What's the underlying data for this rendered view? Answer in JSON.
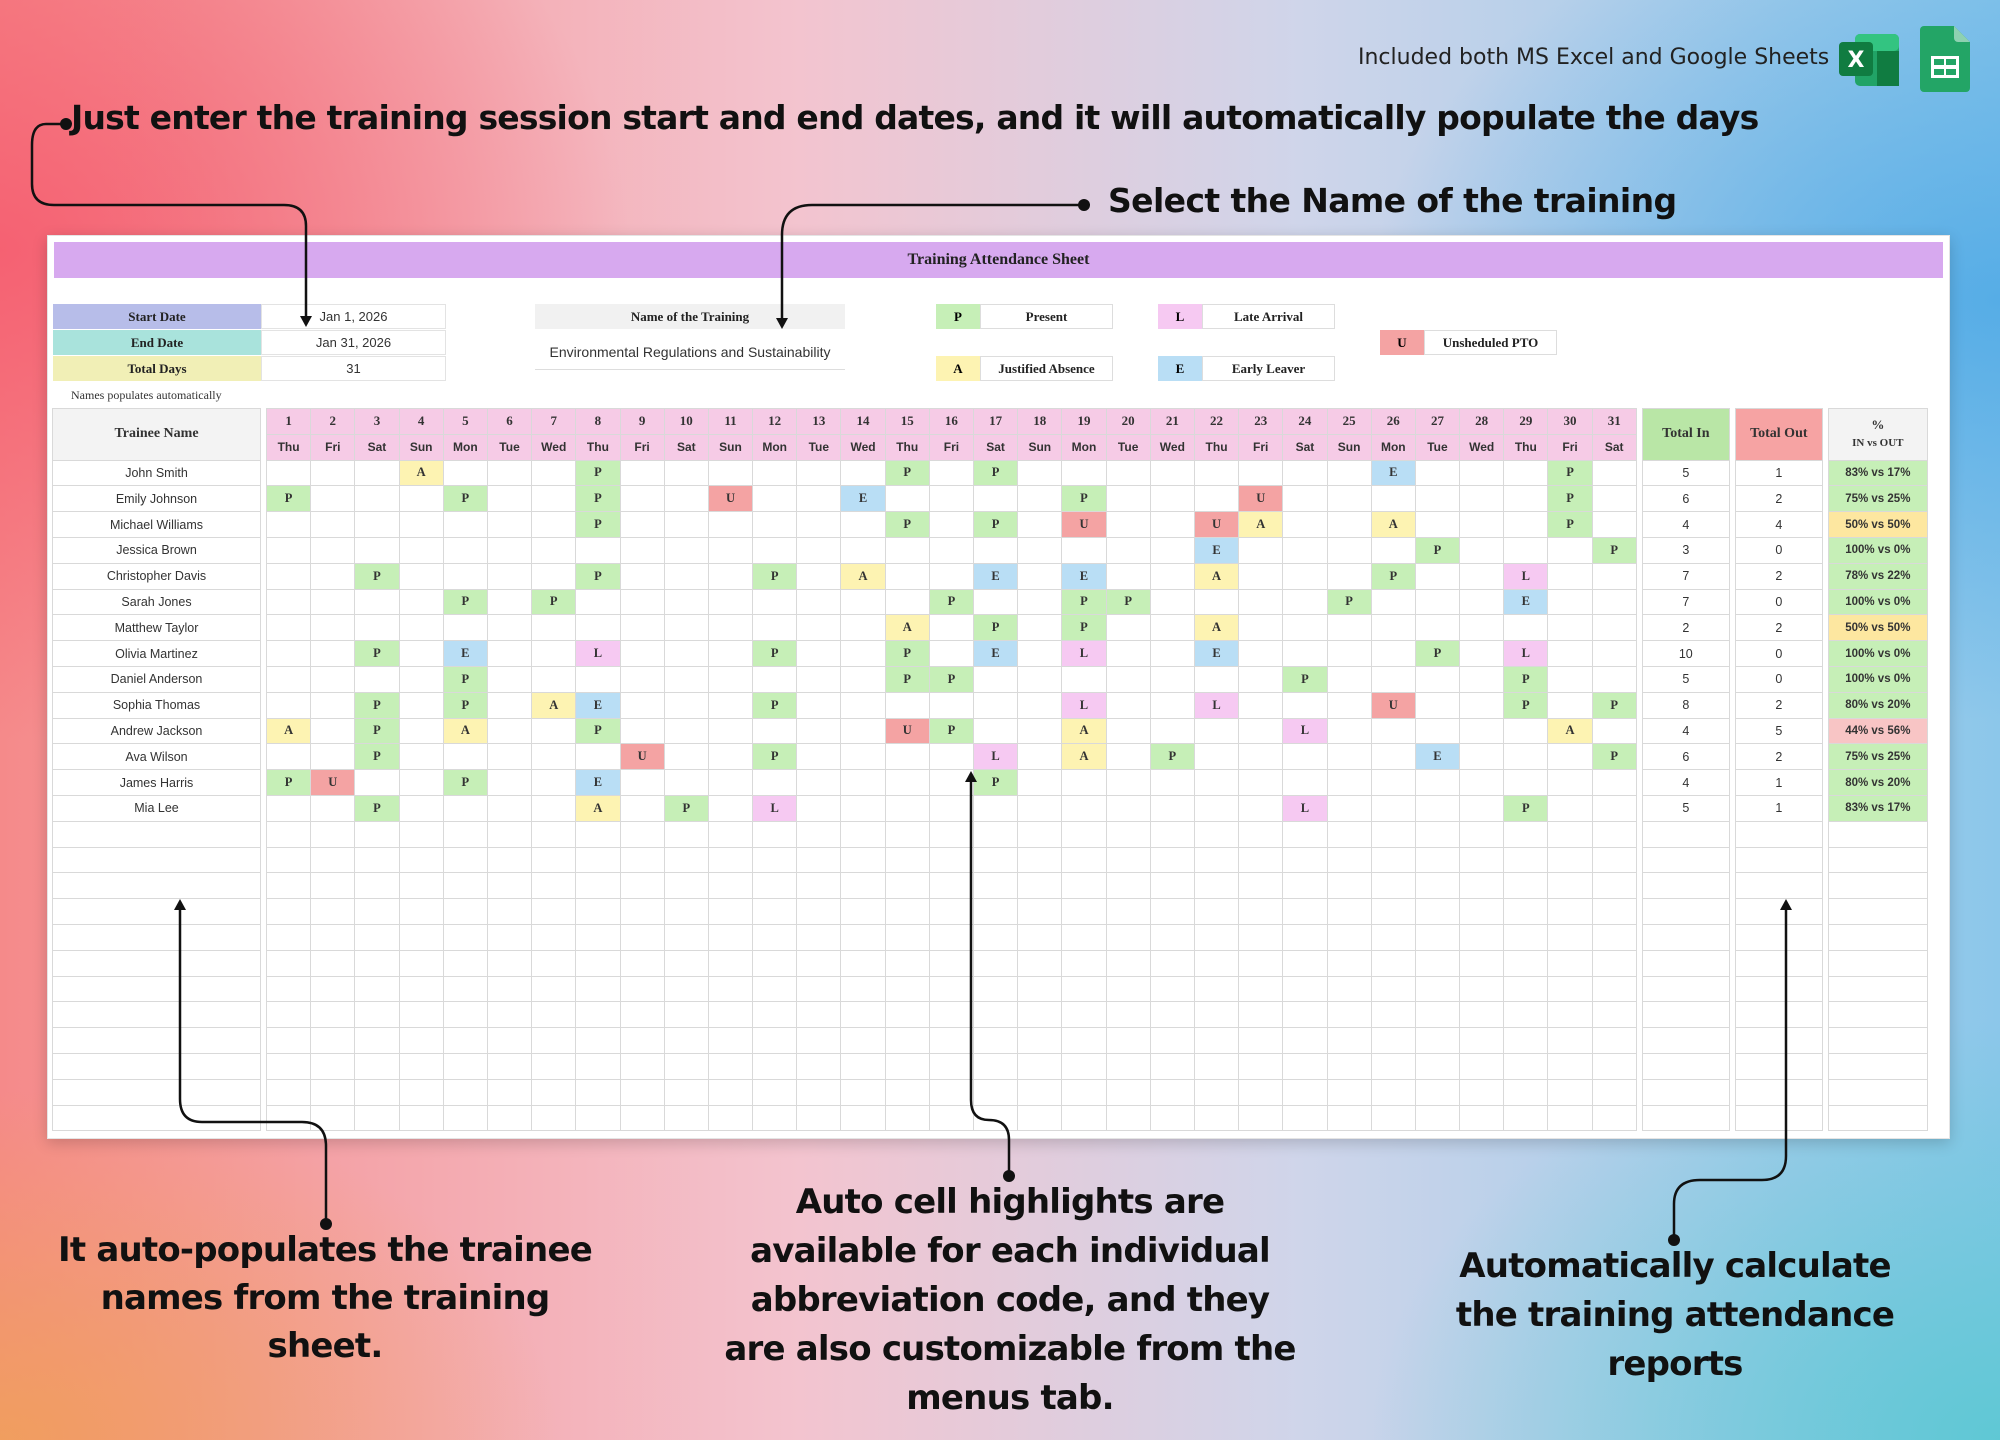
{
  "header": {
    "included_text": "Included both MS Excel and Google Sheets",
    "excel_icon": "excel-icon",
    "sheets_icon": "google-sheets-icon"
  },
  "callouts": {
    "dates": "Just enter the training session start and end dates, and it will automatically populate the days",
    "training_name": "Select the Name of the training",
    "names": "It auto-populates the trainee names from the training sheet.",
    "highlights": "Auto cell highlights are available for each individual abbreviation code, and they are also customizable from the menus tab.",
    "reports": "Automatically calculate the training attendance reports"
  },
  "sheet": {
    "title": "Training Attendance Sheet",
    "start_label": "Start Date",
    "start_value": "Jan 1, 2026",
    "end_label": "End Date",
    "end_value": "Jan 31, 2026",
    "total_label": "Total Days",
    "total_value": "31",
    "training_label": "Name of the Training",
    "training_value": "Environmental Regulations and Sustainability",
    "names_note": "Names populates automatically",
    "legend": [
      {
        "code": "P",
        "name": "Present",
        "color": "#c6efb7"
      },
      {
        "code": "A",
        "name": "Justified Absence",
        "color": "#fdf3b2"
      },
      {
        "code": "L",
        "name": "Late Arrival",
        "color": "#f6c9f2"
      },
      {
        "code": "E",
        "name": "Early Leaver",
        "color": "#b9def5"
      },
      {
        "code": "U",
        "name": "Unsheduled PTO",
        "color": "#f4a3a3"
      }
    ],
    "columns": {
      "name": "Trainee Name",
      "total_in": "Total In",
      "total_out": "Total Out",
      "pct_top": "%",
      "pct_bottom": "IN vs OUT"
    },
    "days": [
      "1",
      "2",
      "3",
      "4",
      "5",
      "6",
      "7",
      "8",
      "9",
      "10",
      "11",
      "12",
      "13",
      "14",
      "15",
      "16",
      "17",
      "18",
      "19",
      "20",
      "21",
      "22",
      "23",
      "24",
      "25",
      "26",
      "27",
      "28",
      "29",
      "30",
      "31"
    ],
    "weekdays": [
      "Thu",
      "Fri",
      "Sat",
      "Sun",
      "Mon",
      "Tue",
      "Wed",
      "Thu",
      "Fri",
      "Sat",
      "Sun",
      "Mon",
      "Tue",
      "Wed",
      "Thu",
      "Fri",
      "Sat",
      "Sun",
      "Mon",
      "Tue",
      "Wed",
      "Thu",
      "Fri",
      "Sat",
      "Sun",
      "Mon",
      "Tue",
      "Wed",
      "Thu",
      "Fri",
      "Sat"
    ],
    "rows": [
      {
        "name": "John Smith",
        "marks": {
          "4": "A",
          "8": "P",
          "15": "P",
          "17": "P",
          "26": "E",
          "30": "P"
        },
        "in": "5",
        "out": "1",
        "pct": "83% vs 17%"
      },
      {
        "name": "Emily Johnson",
        "marks": {
          "1": "P",
          "5": "P",
          "8": "P",
          "11": "U",
          "14": "E",
          "19": "P",
          "23": "U",
          "30": "P"
        },
        "in": "6",
        "out": "2",
        "pct": "75% vs 25%"
      },
      {
        "name": "Michael Williams",
        "marks": {
          "8": "P",
          "15": "P",
          "17": "P",
          "19": "U",
          "22": "U",
          "23": "A",
          "26": "A",
          "30": "P"
        },
        "in": "4",
        "out": "4",
        "pct": "50% vs 50%"
      },
      {
        "name": "Jessica Brown",
        "marks": {
          "22": "E",
          "27": "P",
          "31": "P"
        },
        "in": "3",
        "out": "0",
        "pct": "100% vs 0%"
      },
      {
        "name": "Christopher Davis",
        "marks": {
          "3": "P",
          "8": "P",
          "12": "P",
          "14": "A",
          "17": "E",
          "19": "E",
          "22": "A",
          "26": "P",
          "29": "L"
        },
        "in": "7",
        "out": "2",
        "pct": "78% vs 22%"
      },
      {
        "name": "Sarah Jones",
        "marks": {
          "5": "P",
          "7": "P",
          "16": "P",
          "19": "P",
          "20": "P",
          "25": "P",
          "29": "E"
        },
        "in": "7",
        "out": "0",
        "pct": "100% vs 0%"
      },
      {
        "name": "Matthew Taylor",
        "marks": {
          "15": "A",
          "17": "P",
          "19": "P",
          "22": "A"
        },
        "in": "2",
        "out": "2",
        "pct": "50% vs 50%"
      },
      {
        "name": "Olivia Martinez",
        "marks": {
          "3": "P",
          "5": "E",
          "8": "L",
          "12": "P",
          "15": "P",
          "17": "E",
          "19": "L",
          "22": "E",
          "27": "P",
          "29": "L"
        },
        "in": "10",
        "out": "0",
        "pct": "100% vs 0%"
      },
      {
        "name": "Daniel Anderson",
        "marks": {
          "5": "P",
          "15": "P",
          "16": "P",
          "24": "P",
          "29": "P"
        },
        "in": "5",
        "out": "0",
        "pct": "100% vs 0%"
      },
      {
        "name": "Sophia Thomas",
        "marks": {
          "3": "P",
          "5": "P",
          "7": "A",
          "8": "E",
          "12": "P",
          "19": "L",
          "22": "L",
          "26": "U",
          "29": "P",
          "31": "P"
        },
        "in": "8",
        "out": "2",
        "pct": "80% vs 20%"
      },
      {
        "name": "Andrew Jackson",
        "marks": {
          "1": "A",
          "3": "P",
          "5": "A",
          "8": "P",
          "15": "U",
          "16": "P",
          "19": "A",
          "24": "L",
          "30": "A"
        },
        "in": "4",
        "out": "5",
        "pct": "44% vs 56%"
      },
      {
        "name": "Ava Wilson",
        "marks": {
          "3": "P",
          "9": "U",
          "12": "P",
          "17": "L",
          "19": "A",
          "21": "P",
          "27": "E",
          "31": "P"
        },
        "in": "6",
        "out": "2",
        "pct": "75% vs 25%"
      },
      {
        "name": "James Harris",
        "marks": {
          "1": "P",
          "2": "U",
          "5": "P",
          "8": "E",
          "17": "P"
        },
        "in": "4",
        "out": "1",
        "pct": "80% vs 20%"
      },
      {
        "name": "Mia Lee",
        "marks": {
          "3": "P",
          "8": "A",
          "10": "P",
          "12": "L",
          "24": "L",
          "29": "P"
        },
        "in": "5",
        "out": "1",
        "pct": "83% vs 17%"
      }
    ]
  }
}
